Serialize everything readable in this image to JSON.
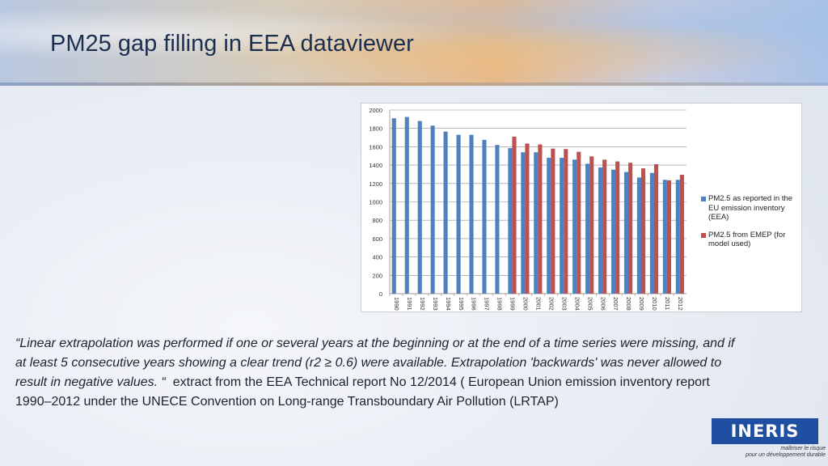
{
  "page": {
    "title": "PM25 gap filling in EEA dataviewer"
  },
  "chart_data": {
    "type": "bar",
    "title": "",
    "xlabel": "",
    "ylabel": "",
    "ylim": [
      0,
      2000
    ],
    "yticks": [
      0,
      200,
      400,
      600,
      800,
      1000,
      1200,
      1400,
      1600,
      1800,
      2000
    ],
    "categories": [
      "1990",
      "1991",
      "1992",
      "1993",
      "1994",
      "1995",
      "1996",
      "1997",
      "1998",
      "1999",
      "2000",
      "2001",
      "2002",
      "2003",
      "2004",
      "2005",
      "2006",
      "2007",
      "2008",
      "2009",
      "2010",
      "2011",
      "2012"
    ],
    "series": [
      {
        "name": "PM2.5 as reported in the EU emission inventory (EEA)",
        "color": "#4f81bd",
        "values": [
          1910,
          1925,
          1880,
          1830,
          1765,
          1730,
          1730,
          1675,
          1620,
          1585,
          1540,
          1540,
          1480,
          1480,
          1460,
          1415,
          1375,
          1350,
          1325,
          1265,
          1315,
          1240,
          1240
        ]
      },
      {
        "name": "PM2.5 from EMEP (for model used)",
        "color": "#c0504d",
        "values": [
          null,
          null,
          null,
          null,
          null,
          null,
          null,
          null,
          null,
          1710,
          1635,
          1625,
          1580,
          1575,
          1545,
          1495,
          1460,
          1440,
          1425,
          1365,
          1410,
          1235,
          1295
        ]
      }
    ],
    "legend_position": "right",
    "legend": [
      {
        "lines": [
          "PM2.5 as reported in the",
          "EU emission inventory",
          "(EEA)"
        ],
        "color": "#4f81bd"
      },
      {
        "lines": [
          "PM2.5 from EMEP (for",
          "model used)"
        ],
        "color": "#c0504d"
      }
    ],
    "grid": true
  },
  "quote": {
    "italic": "“Linear extrapolation was performed if one or several years at the beginning or at the end of a time series were missing, and if at least 5 consecutive years showing a clear trend (r2 ≥ 0.6) were available. Extrapolation 'backwards' was never allowed to result in negative values. “",
    "source": "extract from the EEA Technical report No 12/2014 ( European Union emission inventory report 1990–2012 under the UNECE Convention on Long-range Transboundary Air Pollution (LRTAP)"
  },
  "logo": {
    "text": "INERIS",
    "tagline_1": "maîtriser le risque",
    "tagline_2": "pour un développement durable"
  }
}
